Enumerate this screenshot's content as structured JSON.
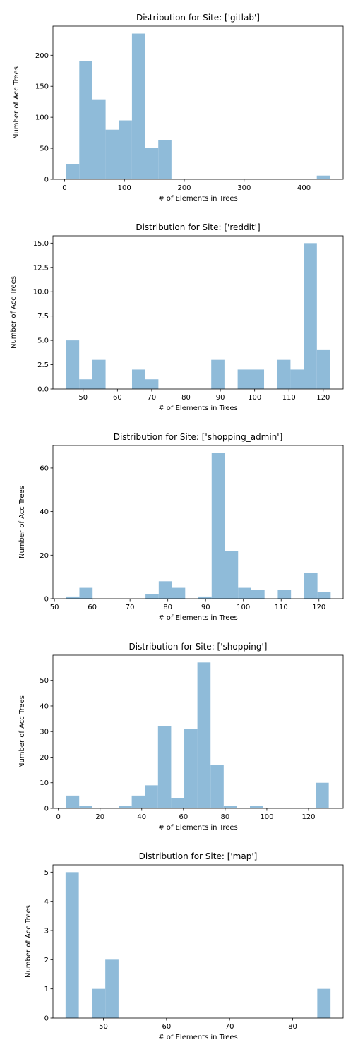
{
  "chart_data": [
    {
      "type": "bar",
      "title": "Distribution for Site: ['gitlab']",
      "xlabel": "# of Elements in Trees",
      "ylabel": "Number of Acc Trees",
      "xlim": [
        -19.4,
        465.4
      ],
      "ylim": [
        0,
        247
      ],
      "xticks": [
        0,
        100,
        200,
        300,
        400
      ],
      "yticks": [
        0,
        50,
        100,
        150,
        200
      ],
      "bins": [
        {
          "x0": 2.6,
          "x1": 24.6,
          "count": 24
        },
        {
          "x0": 24.6,
          "x1": 46.6,
          "count": 191
        },
        {
          "x0": 46.6,
          "x1": 68.6,
          "count": 129
        },
        {
          "x0": 68.6,
          "x1": 90.6,
          "count": 80
        },
        {
          "x0": 90.6,
          "x1": 112.6,
          "count": 95
        },
        {
          "x0": 112.6,
          "x1": 134.6,
          "count": 235
        },
        {
          "x0": 134.6,
          "x1": 156.6,
          "count": 51
        },
        {
          "x0": 156.6,
          "x1": 178.6,
          "count": 63
        },
        {
          "x0": 421.4,
          "x1": 443.4,
          "count": 6
        }
      ],
      "grid": false,
      "bar_color": "#8fbbd9"
    },
    {
      "type": "bar",
      "title": "Distribution for Site: ['reddit']",
      "xlabel": "# of Elements in Trees",
      "ylabel": "Number of Acc Trees",
      "xlim": [
        41.2,
        125.8
      ],
      "ylim": [
        0,
        15.75
      ],
      "xticks": [
        50,
        60,
        70,
        80,
        90,
        100,
        110,
        120
      ],
      "yticks": [
        "0.0",
        "2.5",
        "5.0",
        "7.5",
        "10.0",
        "12.5",
        "15.0"
      ],
      "bins": [
        {
          "x0": 45.0,
          "x1": 48.85,
          "count": 5
        },
        {
          "x0": 48.85,
          "x1": 52.7,
          "count": 1
        },
        {
          "x0": 52.7,
          "x1": 56.55,
          "count": 3
        },
        {
          "x0": 64.25,
          "x1": 68.1,
          "count": 2
        },
        {
          "x0": 68.1,
          "x1": 71.95,
          "count": 1
        },
        {
          "x0": 87.35,
          "x1": 91.2,
          "count": 3
        },
        {
          "x0": 95.05,
          "x1": 98.9,
          "count": 2
        },
        {
          "x0": 98.9,
          "x1": 102.75,
          "count": 2
        },
        {
          "x0": 106.6,
          "x1": 110.45,
          "count": 3
        },
        {
          "x0": 110.45,
          "x1": 114.3,
          "count": 2
        },
        {
          "x0": 114.3,
          "x1": 118.15,
          "count": 15
        },
        {
          "x0": 118.15,
          "x1": 122.0,
          "count": 4
        }
      ],
      "grid": false,
      "bar_color": "#8fbbd9"
    },
    {
      "type": "bar",
      "title": "Distribution for Site: ['shopping_admin']",
      "xlabel": "# of Elements in Trees",
      "ylabel": "Number of Acc Trees",
      "xlim": [
        49.6,
        126.4
      ],
      "ylim": [
        0,
        70.35
      ],
      "xticks": [
        50,
        60,
        70,
        80,
        90,
        100,
        110,
        120
      ],
      "yticks": [
        0,
        20,
        40,
        60
      ],
      "bins": [
        {
          "x0": 53.1,
          "x1": 56.6,
          "count": 1
        },
        {
          "x0": 56.6,
          "x1": 60.1,
          "count": 5
        },
        {
          "x0": 74.1,
          "x1": 77.6,
          "count": 2
        },
        {
          "x0": 77.6,
          "x1": 81.1,
          "count": 8
        },
        {
          "x0": 81.1,
          "x1": 84.6,
          "count": 5
        },
        {
          "x0": 88.1,
          "x1": 91.6,
          "count": 1
        },
        {
          "x0": 91.6,
          "x1": 95.1,
          "count": 67
        },
        {
          "x0": 95.1,
          "x1": 98.6,
          "count": 22
        },
        {
          "x0": 98.6,
          "x1": 102.1,
          "count": 5
        },
        {
          "x0": 102.1,
          "x1": 105.6,
          "count": 4
        },
        {
          "x0": 109.1,
          "x1": 112.6,
          "count": 4
        },
        {
          "x0": 116.1,
          "x1": 119.6,
          "count": 12
        },
        {
          "x0": 119.6,
          "x1": 123.1,
          "count": 3
        }
      ],
      "grid": false,
      "bar_color": "#8fbbd9"
    },
    {
      "type": "bar",
      "title": "Distribution for Site: ['shopping']",
      "xlabel": "# of Elements in Trees",
      "ylabel": "Number of Acc Trees",
      "xlim": [
        -2.6,
        136.6
      ],
      "ylim": [
        0,
        59.85
      ],
      "xticks": [
        0,
        20,
        40,
        60,
        80,
        100,
        120
      ],
      "yticks": [
        0,
        10,
        20,
        30,
        40,
        50
      ],
      "bins": [
        {
          "x0": 3.7,
          "x1": 10.0,
          "count": 5
        },
        {
          "x0": 10.0,
          "x1": 16.3,
          "count": 1
        },
        {
          "x0": 28.9,
          "x1": 35.2,
          "count": 1
        },
        {
          "x0": 35.2,
          "x1": 41.5,
          "count": 5
        },
        {
          "x0": 41.5,
          "x1": 47.8,
          "count": 9
        },
        {
          "x0": 47.8,
          "x1": 54.1,
          "count": 32
        },
        {
          "x0": 54.1,
          "x1": 60.4,
          "count": 4
        },
        {
          "x0": 60.4,
          "x1": 66.7,
          "count": 31
        },
        {
          "x0": 66.7,
          "x1": 73.0,
          "count": 57
        },
        {
          "x0": 73.0,
          "x1": 79.3,
          "count": 17
        },
        {
          "x0": 79.3,
          "x1": 85.6,
          "count": 1
        },
        {
          "x0": 91.9,
          "x1": 98.2,
          "count": 1
        },
        {
          "x0": 123.4,
          "x1": 129.7,
          "count": 10
        }
      ],
      "grid": false,
      "bar_color": "#8fbbd9"
    },
    {
      "type": "bar",
      "title": "Distribution for Site: ['map']",
      "xlabel": "# of Elements in Trees",
      "ylabel": "Number of Acc Trees",
      "xlim": [
        42.0,
        88.0
      ],
      "ylim": [
        0,
        5.25
      ],
      "xticks": [
        50,
        60,
        70,
        80
      ],
      "yticks": [
        0,
        1,
        2,
        3,
        4,
        5
      ],
      "bins": [
        {
          "x0": 44.0,
          "x1": 46.1,
          "count": 5
        },
        {
          "x0": 48.2,
          "x1": 50.3,
          "count": 1
        },
        {
          "x0": 50.3,
          "x1": 52.4,
          "count": 2
        },
        {
          "x0": 83.9,
          "x1": 86.0,
          "count": 1
        }
      ],
      "grid": false,
      "bar_color": "#8fbbd9"
    }
  ]
}
